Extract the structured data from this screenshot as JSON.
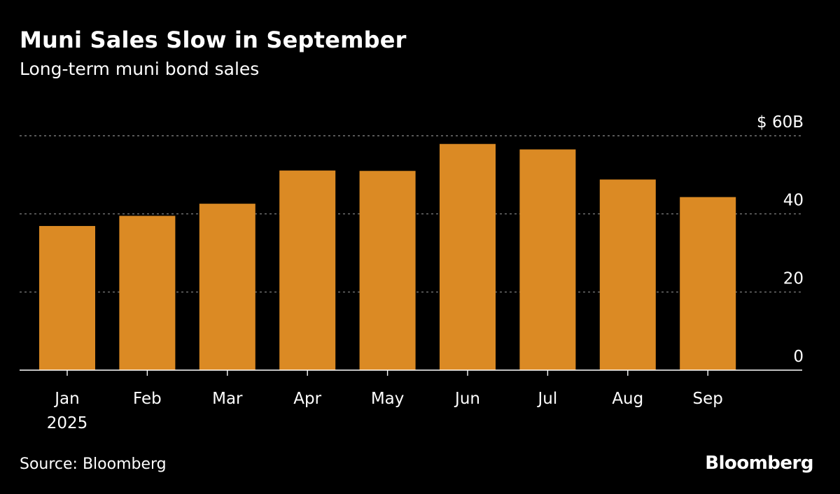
{
  "header": {
    "title": "Muni Sales Slow in September",
    "subtitle": "Long-term muni bond sales"
  },
  "footer": {
    "source": "Source: Bloomberg",
    "brand": "Bloomberg"
  },
  "colors": {
    "background": "#000000",
    "bar": "#DB8A24",
    "grid": "#8c8c8c",
    "axis": "#ffffff",
    "text": "#ffffff"
  },
  "chart_data": {
    "type": "bar",
    "title": "Muni Sales Slow in September",
    "subtitle": "Long-term muni bond sales",
    "xlabel": "",
    "ylabel": "",
    "categories": [
      "Jan",
      "Feb",
      "Mar",
      "Apr",
      "May",
      "Jun",
      "Jul",
      "Aug",
      "Sep"
    ],
    "category_sublabels": [
      "2025",
      "",
      "",
      "",
      "",
      "",
      "",
      "",
      ""
    ],
    "values": [
      36.9,
      39.5,
      42.6,
      51.1,
      51.0,
      57.9,
      56.5,
      48.8,
      44.3
    ],
    "unit": "$ billions",
    "ylim": [
      0,
      60
    ],
    "yticks": [
      0,
      20,
      40,
      60
    ],
    "ytick_labels": [
      "0",
      "20",
      "40",
      "$ 60B"
    ],
    "y_axis_side": "right",
    "grid": true,
    "grid_style": "dotted",
    "legend": "none"
  }
}
